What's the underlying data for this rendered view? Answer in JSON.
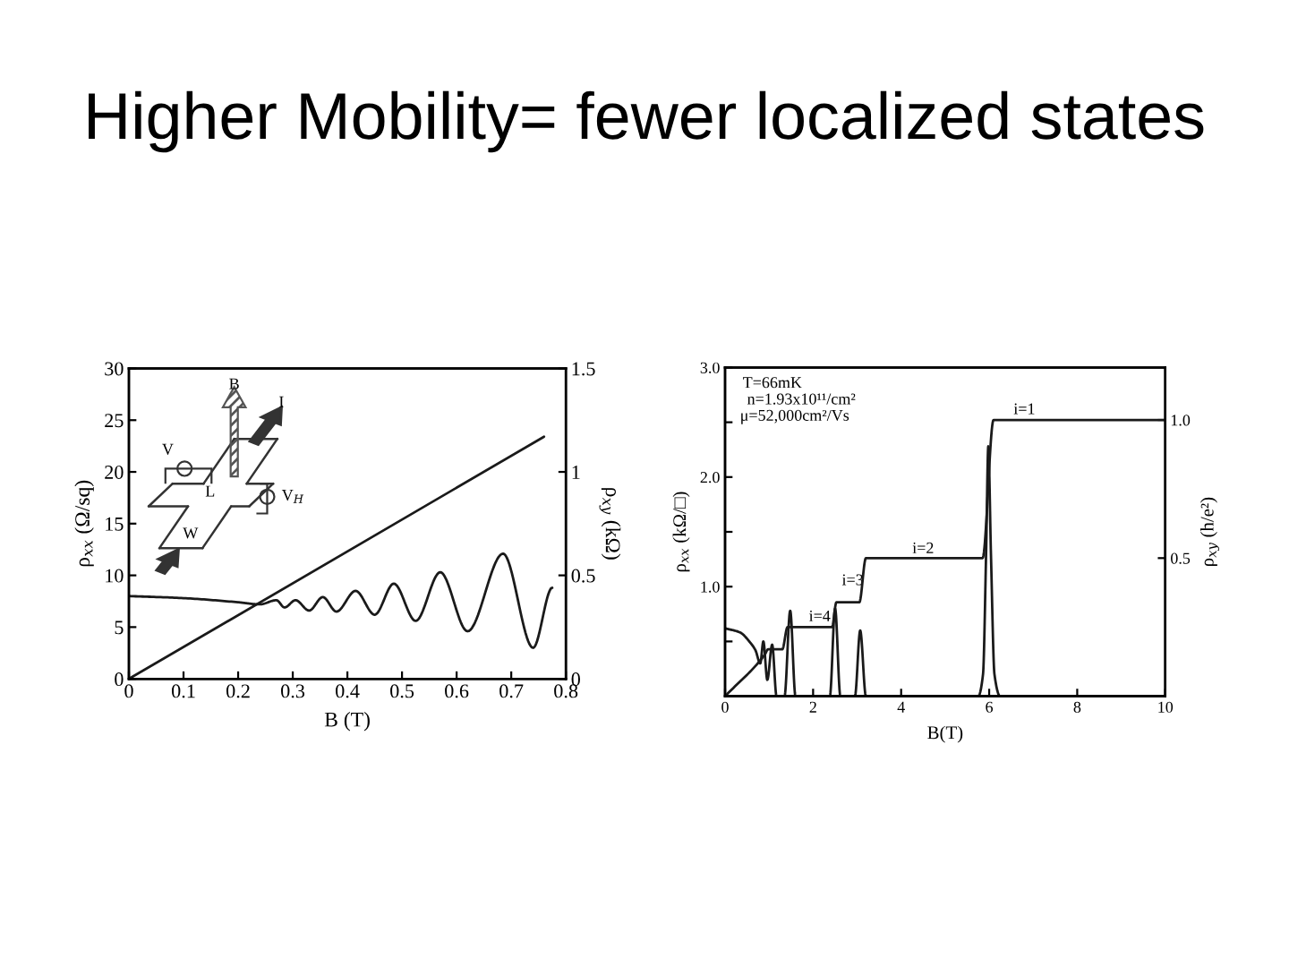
{
  "chart_data": [
    {
      "type": "line",
      "title": "Higher Mobility= fewer localized states",
      "xlabel": "B (T)",
      "ylabel": "ρ$_{xx}$ (Ω/sq)",
      "y2label": "ρ$_{xy}$ (kΩ)",
      "annotations": [
        "B",
        "I",
        "V",
        "V$_{H}$",
        "L",
        "W"
      ],
      "xlim": [
        0,
        0.8
      ],
      "xticks": [
        0,
        0.1,
        0.2,
        0.3,
        0.4,
        0.5,
        0.6,
        0.7,
        0.8
      ],
      "ylim": [
        0,
        30
      ],
      "yticks": [
        0,
        5,
        10,
        15,
        20,
        25,
        30
      ],
      "y2lim": [
        0,
        1.5
      ],
      "y2ticks": [
        0,
        0.5,
        1,
        1.5
      ],
      "series": [
        {
          "color": "#1a1a1a",
          "x": [
            0,
            0.1,
            0.2,
            0.24,
            0.27,
            0.285,
            0.305,
            0.33,
            0.355,
            0.38,
            0.415,
            0.45,
            0.485,
            0.525,
            0.57,
            0.62,
            0.685,
            0.74,
            0.775
          ],
          "values": [
            8.0,
            7.8,
            7.4,
            7.2,
            7.6,
            6.9,
            7.6,
            6.6,
            7.9,
            6.5,
            8.5,
            6.2,
            9.2,
            5.6,
            10.3,
            4.6,
            12.1,
            3.0,
            8.8
          ]
        },
        {
          "color": "#1a1a1a",
          "axis": "y2",
          "x": [
            0,
            0.76
          ],
          "values": [
            0,
            1.17
          ]
        }
      ]
    },
    {
      "type": "line",
      "xlabel": "B(T)",
      "ylabel": "ρ$_{xx}$ (kΩ/□)",
      "y2label": "ρ$_{xy}$ (h/e²)",
      "annotations": [
        "T=66mK",
        "n=1.93x10¹¹/cm²",
        "μ=52,000cm²/Vs",
        "i=1",
        "i=2",
        "i=3",
        "i=4"
      ],
      "xlim": [
        0,
        10
      ],
      "xticks": [
        0,
        2,
        4,
        6,
        8,
        10
      ],
      "ylim": [
        0,
        3.0
      ],
      "yticks": [
        {
          "value": 0.5,
          "label": null
        },
        {
          "value": 1.0,
          "label": "1.0"
        },
        {
          "value": 1.5,
          "label": null
        },
        {
          "value": 2.0,
          "label": "2.0"
        },
        {
          "value": 2.5,
          "label": null
        },
        {
          "value": 3.0,
          "label": "3.0"
        }
      ],
      "y2lim": [
        0,
        1.19
      ],
      "y2ticks": [
        0.5,
        {
          "value": 1.0,
          "label": "1.0"
        }
      ],
      "series": [
        {
          "color": "#1a1a1a",
          "x": [
            0,
            0.35,
            0.55,
            0.69,
            0.8,
            0.87,
            0.96,
            1.07,
            1.17,
            1.35,
            1.48,
            1.6,
            2.38,
            2.5,
            2.62,
            2.95,
            3.07,
            3.2,
            5.75,
            5.86,
            5.93,
            5.98,
            6.04,
            6.12,
            6.25,
            10
          ],
          "values": [
            0.62,
            0.58,
            0.5,
            0.42,
            0.3,
            0.5,
            0.15,
            0.47,
            0.0,
            0.0,
            0.78,
            0.0,
            0.0,
            0.8,
            0.0,
            0.0,
            0.6,
            0.0,
            0.0,
            0.2,
            1.3,
            2.28,
            1.3,
            0.2,
            0.0,
            0.0
          ]
        },
        {
          "color": "#1a1a1a",
          "axis": "y2",
          "x": [
            0,
            0.9,
            0.98,
            1.3,
            1.42,
            2.43,
            2.53,
            3.05,
            3.2,
            5.85,
            6.1,
            10
          ],
          "values": [
            0,
            0.15,
            0.17,
            0.17,
            0.25,
            0.25,
            0.34,
            0.34,
            0.5,
            0.5,
            1.0,
            1.0
          ]
        }
      ]
    }
  ]
}
